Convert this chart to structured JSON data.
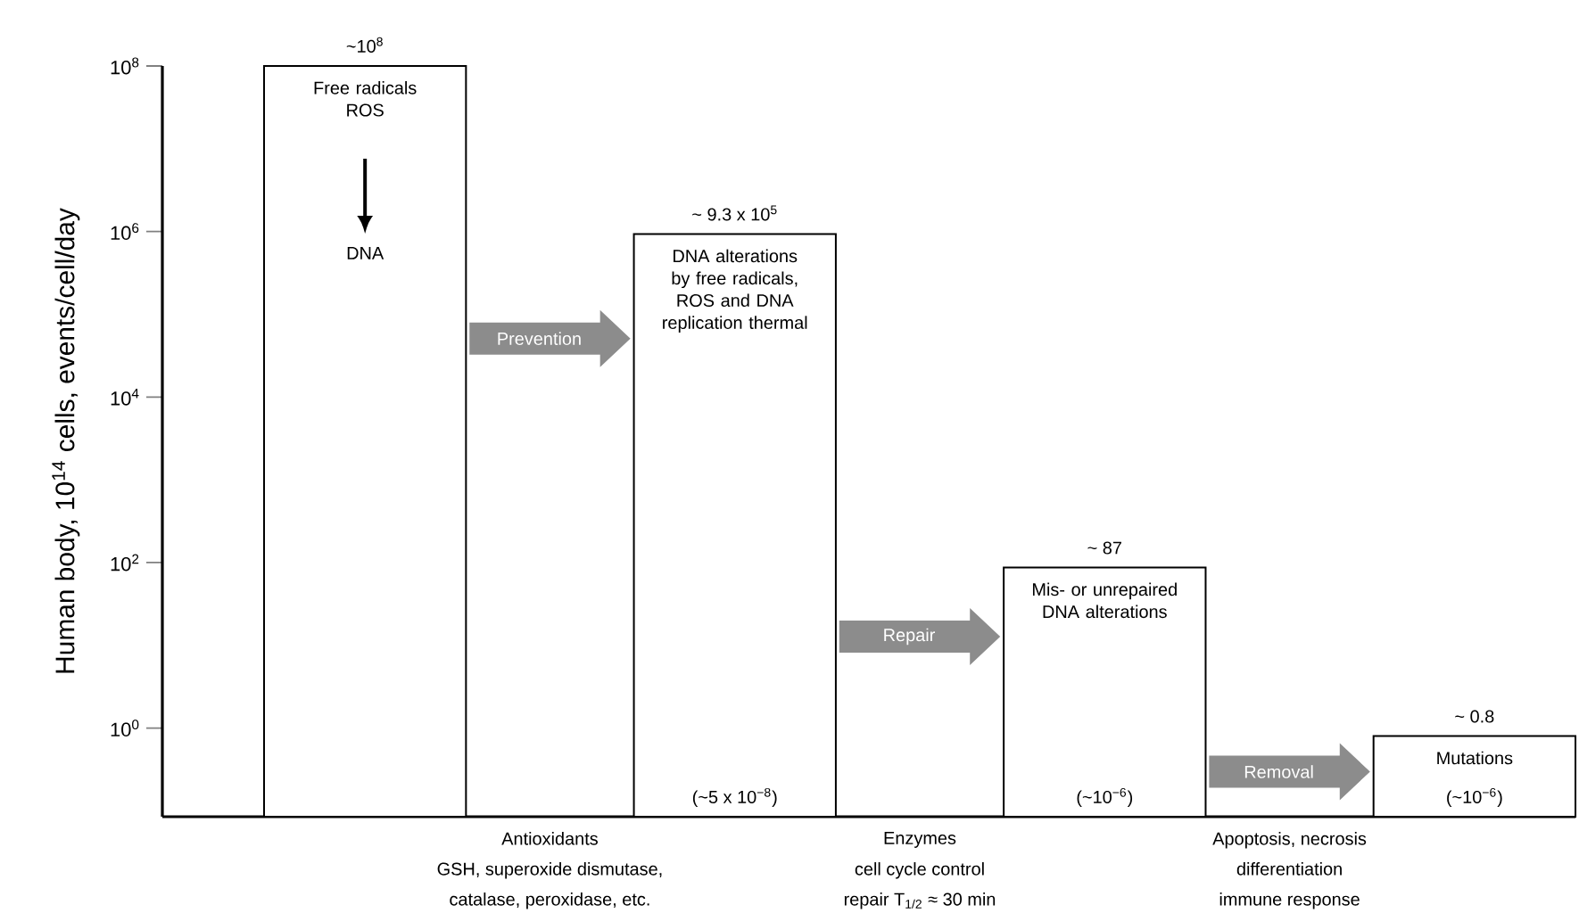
{
  "chart_data": {
    "type": "bar",
    "ylabel": "Human body, 10$^{14}$ cells, events/cell/day",
    "categories": [
      "Free radicals ROS",
      "DNA alterations by free radicals, ROS and DNA replication thermal",
      "Mis- or unrepaired DNA alterations",
      "Mutations"
    ],
    "values": [
      100000000,
      930000,
      87,
      0.8
    ],
    "value_labels": [
      "~10$^{8}$",
      "~ 9.3  x 10$^{5}$",
      "~ 87",
      "~ 0.8"
    ],
    "color": "#ffffff",
    "log": true,
    "ylim": [
      0.085,
      100000000
    ],
    "yticks": [
      {
        "value": 1,
        "label": "10$^{0}$"
      },
      {
        "value": 100,
        "label": "10$^{2}$"
      },
      {
        "value": 10000,
        "label": "10$^{4}$"
      },
      {
        "value": 1000000,
        "label": "10$^{6}$"
      },
      {
        "value": 100000000,
        "label": "10$^{8}$"
      }
    ],
    "tick_labels": "y",
    "annotations": [
      "DNA",
      "Prevention",
      "Repair",
      "Removal",
      "Antioxidants",
      "GSH, superoxide dismutase,",
      "catalase, peroxidase, etc.",
      "Enzymes",
      "cell cycle control",
      "repair T$_{1/2}$ ≈ 30 min",
      "Apoptosis, necrosis",
      "differentiation",
      "immune response",
      "(~5 x 10$^{−8}$)",
      "(~10$^{−6}$)",
      "(~10$^{−6}$)"
    ]
  }
}
